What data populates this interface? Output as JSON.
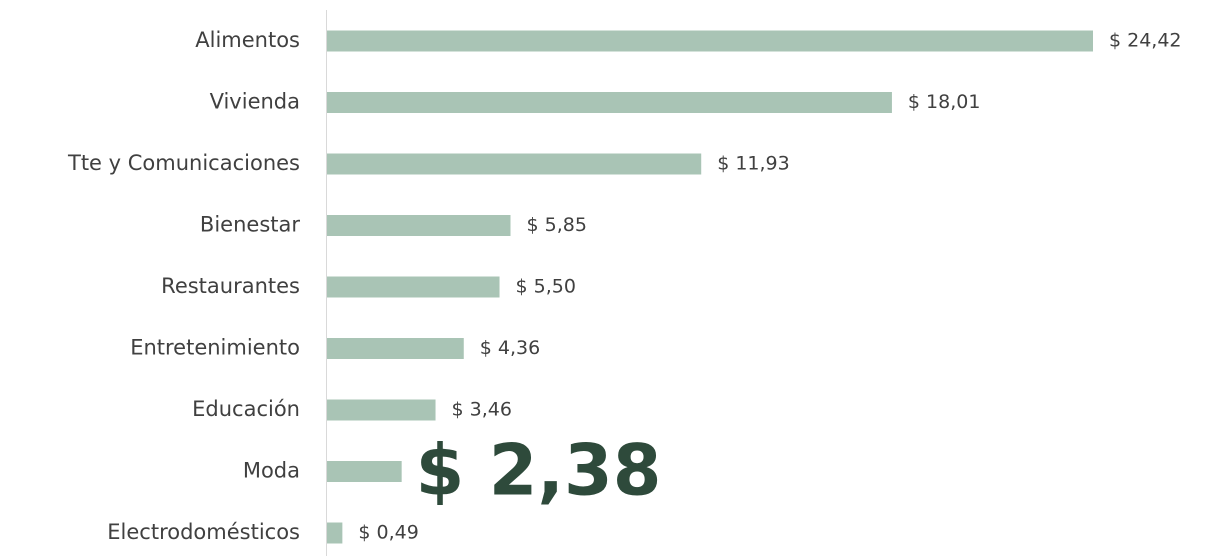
{
  "chart_data": {
    "type": "barh",
    "categories": [
      "Alimentos",
      "Vivienda",
      "Tte y Comunicaciones",
      "Bienestar",
      "Restaurantes",
      "Entretenimiento",
      "Educación",
      "Moda",
      "Electrodomésticos"
    ],
    "values": [
      24.42,
      18.01,
      11.93,
      5.85,
      5.5,
      4.36,
      3.46,
      2.38,
      0.49
    ],
    "value_labels": [
      "$ 24,42",
      "$ 18,01",
      "$ 11,93",
      "$ 5,85",
      "$ 5,50",
      "$ 4,36",
      "$ 3,46",
      "$ 2,38",
      "$ 0,49"
    ],
    "color": "#a9c4b5",
    "highlight": "Moda",
    "highlight_color": "#2e4a3b"
  }
}
